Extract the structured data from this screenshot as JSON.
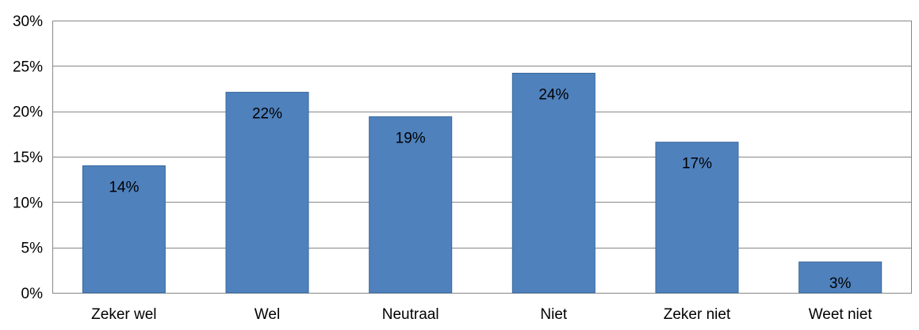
{
  "chart_data": {
    "type": "bar",
    "title": "",
    "xlabel": "",
    "ylabel": "",
    "categories": [
      "Zeker wel",
      "Wel",
      "Neutraal",
      "Niet",
      "Zeker niet",
      "Weet niet"
    ],
    "values": [
      14,
      22.1,
      19.4,
      24.2,
      16.6,
      3.4
    ],
    "data_labels": [
      "14%",
      "22%",
      "19%",
      "24%",
      "17%",
      "3%"
    ],
    "ylim": [
      0,
      30
    ],
    "y_ticks": [
      0,
      5,
      10,
      15,
      20,
      25,
      30
    ],
    "y_tick_labels": [
      "0%",
      "5%",
      "10%",
      "15%",
      "20%",
      "25%",
      "30%"
    ],
    "grid": true,
    "legend": "none",
    "bar_color": "#4F81BD",
    "bar_edge_color": "#3A6A9E",
    "grid_color": "#878787"
  }
}
